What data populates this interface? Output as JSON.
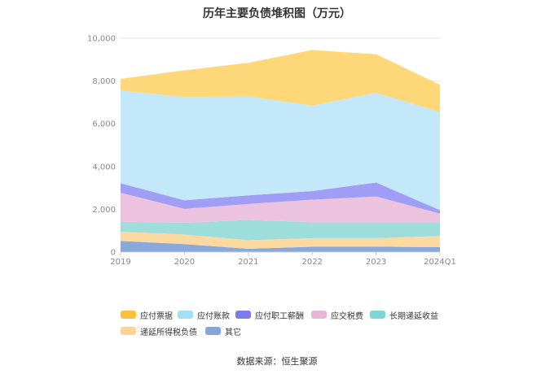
{
  "chart_data": {
    "type": "area",
    "title": "历年主要负债堆积图（万元）",
    "categories": [
      "2019",
      "2020",
      "2021",
      "2022",
      "2023",
      "2024Q1"
    ],
    "ylim": [
      0,
      10000
    ],
    "yticks": [
      "0",
      "2,000",
      "4,000",
      "6,000",
      "8,000",
      "10,000"
    ],
    "stacked": true,
    "grid": true,
    "legend_position": "bottom",
    "series": [
      {
        "name": "其它",
        "color": "#8aa8d8",
        "values": [
          520,
          370,
          150,
          250,
          250,
          230
        ]
      },
      {
        "name": "递延所得税负债",
        "color": "#fcd9a0",
        "values": [
          430,
          450,
          400,
          400,
          400,
          520
        ]
      },
      {
        "name": "长期递延收益",
        "color": "#9ddedd",
        "values": [
          470,
          550,
          950,
          750,
          750,
          650
        ]
      },
      {
        "name": "应交税费",
        "color": "#ebc3df",
        "values": [
          1350,
          650,
          750,
          1050,
          1200,
          400
        ]
      },
      {
        "name": "应付职工薪酬",
        "color": "#a09df5",
        "values": [
          450,
          400,
          400,
          400,
          650,
          160
        ]
      },
      {
        "name": "应付账款",
        "color": "#c2e8fa",
        "values": [
          4330,
          4830,
          4630,
          4000,
          4200,
          4580
        ]
      },
      {
        "name": "应付票据",
        "color": "#fed778",
        "values": [
          550,
          1250,
          1570,
          2600,
          1800,
          1280
        ]
      }
    ]
  },
  "legend": {
    "items": [
      {
        "label": "应付票据",
        "color": "#f9c23c"
      },
      {
        "label": "应付账款",
        "color": "#a3dff9"
      },
      {
        "label": "应付职工薪酬",
        "color": "#7b7bf0"
      },
      {
        "label": "应交税费",
        "color": "#e8b4d8"
      },
      {
        "label": "长期递延收益",
        "color": "#7fd5d5"
      },
      {
        "label": "递延所得税负债",
        "color": "#fcd49a"
      },
      {
        "label": "其它",
        "color": "#87a6d6"
      }
    ]
  },
  "footer": {
    "source": "数据来源：恒生聚源"
  }
}
